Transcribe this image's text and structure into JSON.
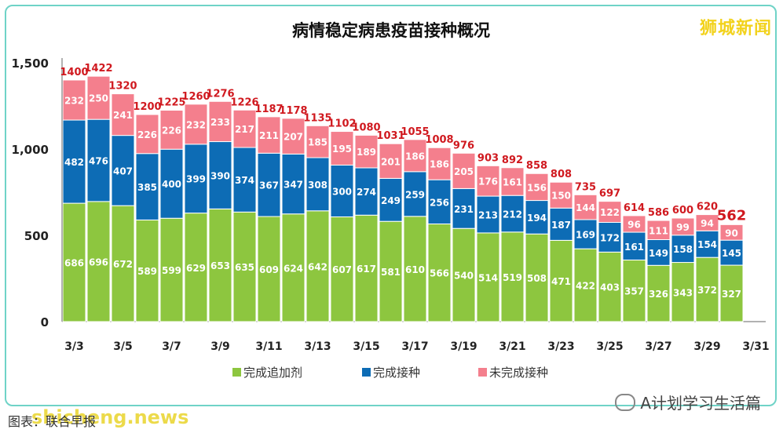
{
  "brand": "狮城新闻",
  "footer": {
    "source": "图表：联合早报",
    "site": "shicheng.news",
    "wechat": "A计划学习生活篇"
  },
  "chart_data": {
    "type": "bar",
    "stacked": true,
    "title": "病情稳定病患疫苗接种概况",
    "ylim": [
      0,
      1500
    ],
    "yticks": [
      0,
      500,
      1000,
      1500
    ],
    "ytick_labels": [
      "0",
      "500",
      "1,000",
      "1,500"
    ],
    "xtick_labels": [
      "3/3",
      "3/5",
      "3/7",
      "3/9",
      "3/11",
      "3/13",
      "3/15",
      "3/17",
      "3/19",
      "3/21",
      "3/23",
      "3/25",
      "3/27",
      "3/29",
      "3/31"
    ],
    "grid": false,
    "legend": "bottom",
    "categories": [
      "3/3",
      "3/4",
      "3/5",
      "3/6",
      "3/7",
      "3/8",
      "3/9",
      "3/10",
      "3/11",
      "3/12",
      "3/13",
      "3/14",
      "3/15",
      "3/16",
      "3/17",
      "3/18",
      "3/19",
      "3/20",
      "3/21",
      "3/22",
      "3/23",
      "3/24",
      "3/25",
      "3/26",
      "3/27",
      "3/28",
      "3/29",
      "3/30"
    ],
    "series": [
      {
        "name": "完成追加剂",
        "color": "#8dc63f",
        "values": [
          686,
          696,
          672,
          589,
          599,
          629,
          653,
          635,
          609,
          624,
          642,
          607,
          617,
          581,
          610,
          566,
          540,
          514,
          519,
          508,
          471,
          422,
          403,
          357,
          326,
          343,
          372,
          327
        ]
      },
      {
        "name": "完成接种",
        "color": "#0d6cb5",
        "values": [
          482,
          476,
          407,
          385,
          400,
          399,
          390,
          374,
          367,
          347,
          308,
          300,
          274,
          249,
          259,
          256,
          231,
          213,
          212,
          194,
          187,
          169,
          172,
          161,
          149,
          158,
          154,
          145
        ]
      },
      {
        "name": "未完成接种",
        "color": "#f47f8d",
        "values": [
          232,
          250,
          241,
          226,
          226,
          232,
          233,
          217,
          211,
          207,
          185,
          195,
          189,
          201,
          186,
          186,
          205,
          176,
          161,
          156,
          150,
          144,
          122,
          96,
          111,
          99,
          94,
          90
        ]
      }
    ],
    "totals": [
      1400,
      1422,
      1320,
      1200,
      1225,
      1260,
      1276,
      1226,
      1187,
      1178,
      1135,
      1102,
      1080,
      1031,
      1055,
      1008,
      976,
      903,
      892,
      858,
      808,
      735,
      697,
      614,
      586,
      600,
      620,
      562
    ]
  }
}
